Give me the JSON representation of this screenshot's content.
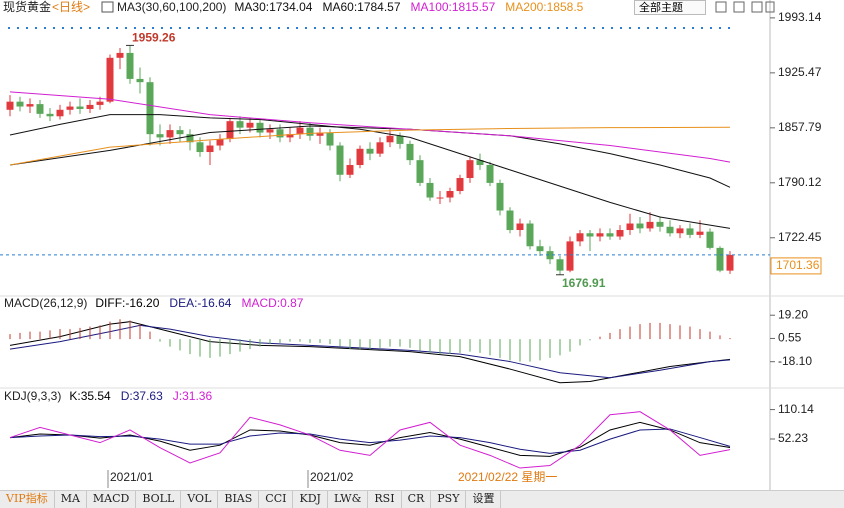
{
  "header": {
    "symbol": "现货黄金",
    "period": "<日线>",
    "theme_button": "全部主题"
  },
  "chart_data": [
    {
      "type": "candlestick",
      "title": "MA3(30,60,100,200)",
      "up_color": "#e0393e",
      "down_color": "#5aa75a",
      "categories": [
        null,
        null,
        null,
        null,
        null,
        null,
        null,
        null,
        null,
        null,
        "2021/01",
        null,
        null,
        null,
        null,
        null,
        null,
        null,
        null,
        null,
        null,
        null,
        null,
        null,
        null,
        null,
        null,
        null,
        null,
        null,
        "2021/02",
        null,
        null,
        null,
        null,
        null,
        null,
        null,
        null,
        null,
        null,
        null,
        null,
        null,
        null,
        null,
        null,
        null,
        null,
        null,
        null,
        null,
        null,
        null,
        null,
        null,
        null,
        null,
        null,
        null,
        null,
        null,
        null,
        null,
        null,
        null,
        null,
        null,
        null,
        null,
        null,
        null,
        null
      ],
      "open": [
        1880,
        1890,
        1884,
        1887,
        1875,
        1872,
        1880,
        1884,
        1881,
        1886,
        1890,
        1944,
        1950,
        1918,
        1914,
        1850,
        1846,
        1855,
        1850,
        1840,
        1828,
        1836,
        1844,
        1866,
        1858,
        1864,
        1852,
        1856,
        1846,
        1850,
        1858,
        1848,
        1852,
        1836,
        1800,
        1812,
        1832,
        1826,
        1840,
        1848,
        1838,
        1818,
        1790,
        1772,
        1772,
        1780,
        1796,
        1818,
        1812,
        1790,
        1756,
        1732,
        1740,
        1712,
        1706,
        1696,
        1682,
        1718,
        1728,
        1724,
        1728,
        1724,
        1732,
        1740,
        1734,
        1742,
        1736,
        1728,
        1734,
        1726,
        1730,
        1710,
        1682
      ],
      "high": [
        1898,
        1896,
        1894,
        1892,
        1882,
        1886,
        1890,
        1894,
        1892,
        1896,
        1948,
        1956,
        1959.26,
        1932,
        1920,
        1862,
        1862,
        1860,
        1856,
        1846,
        1842,
        1850,
        1870,
        1872,
        1870,
        1868,
        1862,
        1862,
        1858,
        1866,
        1864,
        1858,
        1856,
        1840,
        1820,
        1836,
        1840,
        1846,
        1856,
        1852,
        1842,
        1824,
        1796,
        1780,
        1784,
        1800,
        1822,
        1826,
        1816,
        1794,
        1760,
        1746,
        1744,
        1720,
        1712,
        1700,
        1724,
        1732,
        1732,
        1734,
        1734,
        1738,
        1752,
        1748,
        1754,
        1748,
        1744,
        1738,
        1740,
        1744,
        1734,
        1712,
        1706
      ],
      "low": [
        1872,
        1878,
        1876,
        1870,
        1866,
        1868,
        1874,
        1875,
        1876,
        1880,
        1888,
        1930,
        1912,
        1900,
        1836,
        1836,
        1838,
        1840,
        1830,
        1822,
        1812,
        1830,
        1840,
        1850,
        1852,
        1846,
        1844,
        1840,
        1840,
        1844,
        1842,
        1838,
        1830,
        1792,
        1796,
        1808,
        1818,
        1822,
        1834,
        1832,
        1812,
        1786,
        1768,
        1764,
        1766,
        1776,
        1790,
        1806,
        1786,
        1750,
        1728,
        1724,
        1708,
        1700,
        1690,
        1676.91,
        1680,
        1712,
        1706,
        1718,
        1720,
        1720,
        1726,
        1728,
        1730,
        1730,
        1724,
        1722,
        1722,
        1722,
        1708,
        1680,
        1678
      ],
      "close": [
        1890,
        1884,
        1887,
        1875,
        1872,
        1880,
        1884,
        1881,
        1886,
        1890,
        1944,
        1950,
        1918,
        1914,
        1850,
        1846,
        1855,
        1850,
        1840,
        1828,
        1836,
        1844,
        1866,
        1858,
        1864,
        1852,
        1856,
        1846,
        1850,
        1858,
        1848,
        1852,
        1836,
        1800,
        1812,
        1832,
        1826,
        1840,
        1848,
        1838,
        1818,
        1790,
        1772,
        1772,
        1780,
        1796,
        1818,
        1812,
        1790,
        1756,
        1732,
        1740,
        1712,
        1706,
        1696,
        1682,
        1718,
        1728,
        1724,
        1728,
        1724,
        1732,
        1740,
        1734,
        1742,
        1736,
        1728,
        1734,
        1726,
        1730,
        1710,
        1682,
        1701.36
      ],
      "series": [
        {
          "name": "MA30:1734.04",
          "color": "#111111",
          "x": [
            0,
            5,
            10,
            15,
            20,
            25,
            30,
            35,
            40,
            45,
            50,
            55,
            60,
            65,
            70,
            72
          ],
          "values": [
            1849,
            1862,
            1874,
            1874,
            1870,
            1868,
            1862,
            1856,
            1846,
            1826,
            1806,
            1786,
            1766,
            1748,
            1738,
            1734.04
          ]
        },
        {
          "name": "MA60:1784.57",
          "color": "#111111",
          "x": [
            0,
            10,
            20,
            30,
            40,
            50,
            55,
            60,
            65,
            70,
            72
          ],
          "values": [
            1812,
            1830,
            1852,
            1860,
            1856,
            1848,
            1838,
            1826,
            1812,
            1796,
            1784.57
          ]
        },
        {
          "name": "MA100:1815.57",
          "color": "#d21fd2",
          "x": [
            0,
            10,
            20,
            30,
            40,
            50,
            60,
            70,
            72
          ],
          "values": [
            1902,
            1893,
            1874,
            1864,
            1856,
            1848,
            1836,
            1820,
            1815.57
          ]
        },
        {
          "name": "MA200:1858.5",
          "color": "#e8901c",
          "x": [
            0,
            10,
            20,
            30,
            40,
            50,
            60,
            72
          ],
          "values": [
            1812,
            1834,
            1843,
            1851,
            1855,
            1857,
            1858,
            1858.5
          ]
        }
      ],
      "ylim": [
        1652,
        2009
      ],
      "yticks": [
        1993.14,
        1925.47,
        1857.79,
        1790.12,
        1722.45
      ],
      "annotations": [
        {
          "x": 12,
          "value": 1959.26,
          "color": "#c0392b"
        },
        {
          "x": 55,
          "value": 1676.91,
          "color": "#4f9a4f"
        }
      ],
      "last_price": 1701.36,
      "last_price_color": "#e8901c",
      "cursor_label": "2021/02/22 星期一"
    },
    {
      "type": "macd",
      "title": "MACD(26,12,9)",
      "up_color": "#c0392b",
      "down_color": "#5aa75a",
      "series": [
        {
          "name": "DIFF:-16.20",
          "color": "#000000",
          "x": [
            0,
            5,
            10,
            12,
            15,
            20,
            25,
            30,
            35,
            40,
            45,
            50,
            55,
            58,
            62,
            66,
            70,
            72
          ],
          "values": [
            -5,
            2,
            12,
            14,
            8,
            -2,
            -5,
            -6,
            -8,
            -10,
            -14,
            -24,
            -35,
            -34,
            -28,
            -22,
            -18,
            -16.2
          ]
        },
        {
          "name": "DEA:-16.64",
          "color": "#1a1a80",
          "x": [
            0,
            5,
            10,
            13,
            16,
            20,
            25,
            30,
            35,
            40,
            45,
            50,
            55,
            60,
            65,
            70,
            72
          ],
          "values": [
            -8,
            -2,
            6,
            11,
            8,
            2,
            -3,
            -5,
            -7,
            -9,
            -12,
            -18,
            -27,
            -31,
            -25,
            -18,
            -16.64
          ]
        },
        {
          "name": "MACD:0.87",
          "color": "#d21fd2",
          "values": [
            4,
            5,
            6,
            6,
            7,
            8,
            8,
            9,
            10,
            11,
            14,
            16,
            15,
            12,
            6,
            -2,
            -6,
            -9,
            -12,
            -14,
            -15,
            -14,
            -12,
            -10,
            -8,
            -6,
            -4,
            -3,
            -2,
            -2,
            -3,
            -3,
            -4,
            -6,
            -8,
            -8,
            -8,
            -7,
            -6,
            -6,
            -7,
            -9,
            -11,
            -12,
            -12,
            -11,
            -10,
            -11,
            -13,
            -15,
            -17,
            -18,
            -18,
            -17,
            -15,
            -13,
            -10,
            -5,
            -1,
            2,
            5,
            8,
            10,
            12,
            13,
            13,
            12,
            11,
            10,
            8,
            6,
            3,
            0.87
          ]
        }
      ],
      "ylim": [
        -37.6,
        31.4
      ],
      "yticks": [
        {
          "value": 19.2,
          "label": "19.20"
        },
        0.55,
        {
          "value": -18.1,
          "label": "-18.10"
        }
      ]
    },
    {
      "type": "line",
      "title": "KDJ(9,3,3)",
      "series": [
        {
          "name": "K:35.54",
          "color": "#000000",
          "x": [
            0,
            3,
            6,
            9,
            12,
            15,
            18,
            21,
            24,
            27,
            30,
            33,
            36,
            39,
            42,
            45,
            48,
            51,
            54,
            57,
            60,
            63,
            66,
            69,
            72
          ],
          "values": [
            55,
            62,
            60,
            54,
            60,
            48,
            30,
            40,
            70,
            68,
            60,
            45,
            40,
            55,
            65,
            52,
            36,
            20,
            18,
            36,
            70,
            85,
            70,
            45,
            35.54
          ]
        },
        {
          "name": "D:37.63",
          "color": "#1a1a80",
          "x": [
            0,
            3,
            6,
            9,
            12,
            15,
            18,
            21,
            24,
            27,
            30,
            33,
            36,
            39,
            42,
            45,
            48,
            51,
            54,
            57,
            60,
            63,
            66,
            69,
            72
          ],
          "values": [
            55,
            58,
            60,
            57,
            58,
            52,
            42,
            42,
            58,
            64,
            62,
            52,
            45,
            50,
            58,
            55,
            45,
            32,
            24,
            30,
            52,
            70,
            72,
            55,
            37.63
          ]
        },
        {
          "name": "J:31.36",
          "color": "#d21fd2",
          "x": [
            0,
            3,
            6,
            9,
            12,
            15,
            18,
            21,
            24,
            27,
            30,
            33,
            36,
            39,
            42,
            45,
            48,
            51,
            54,
            57,
            60,
            63,
            66,
            69,
            72
          ],
          "values": [
            55,
            75,
            60,
            45,
            70,
            35,
            5,
            25,
            95,
            80,
            60,
            30,
            20,
            70,
            85,
            40,
            20,
            -5,
            0,
            40,
            100,
            106,
            70,
            20,
            31.36
          ]
        }
      ],
      "ylim": [
        -44.3,
        148.7
      ],
      "yticks": [
        110.14,
        52.23
      ]
    }
  ],
  "tabs": [
    "VIP指标",
    "MA",
    "MACD",
    "BOLL",
    "VOL",
    "BIAS",
    "CCI",
    "KDJ",
    "LW&",
    "RSI",
    "CR",
    "PSY",
    "设置"
  ]
}
